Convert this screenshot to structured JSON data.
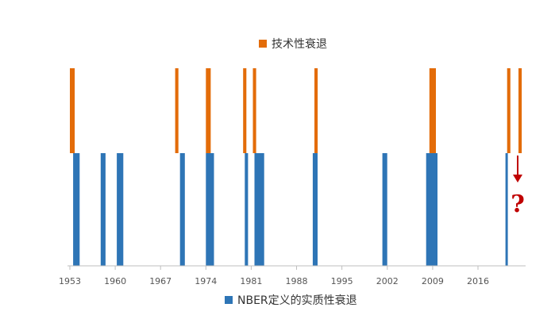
{
  "chart_data": {
    "type": "bar",
    "x_ticks": [
      1953,
      1960,
      1967,
      1974,
      1981,
      1988,
      1995,
      2002,
      2009,
      2016
    ],
    "xlim": [
      1953,
      2022.5
    ],
    "series": [
      {
        "name": "技术性衰退",
        "color": "#E36C09",
        "direction": "up",
        "periods": [
          [
            1953.0,
            1953.75
          ],
          [
            1969.25,
            1969.75
          ],
          [
            1974.0,
            1974.75
          ],
          [
            1979.75,
            1980.25
          ],
          [
            1981.25,
            1981.75
          ],
          [
            1990.75,
            1991.25
          ],
          [
            2008.5,
            2009.5
          ],
          [
            2020.5,
            2021.0
          ],
          [
            2022.25,
            2022.75
          ]
        ]
      },
      {
        "name": "NBER定义的实质性衰退",
        "color": "#2E75B6",
        "direction": "down",
        "periods": [
          [
            1953.5,
            1954.5
          ],
          [
            1957.75,
            1958.5
          ],
          [
            1960.25,
            1961.25
          ],
          [
            1970.0,
            1970.75
          ],
          [
            1974.0,
            1975.25
          ],
          [
            1980.0,
            1980.5
          ],
          [
            1981.5,
            1983.0
          ],
          [
            1990.5,
            1991.25
          ],
          [
            2001.25,
            2002.0
          ],
          [
            2008.0,
            2009.75
          ],
          [
            2020.25,
            2020.5
          ]
        ]
      }
    ],
    "annotation": {
      "text": "?",
      "color": "#C00000"
    },
    "grid": false,
    "legend": [
      "top-center",
      "bottom-center"
    ]
  }
}
